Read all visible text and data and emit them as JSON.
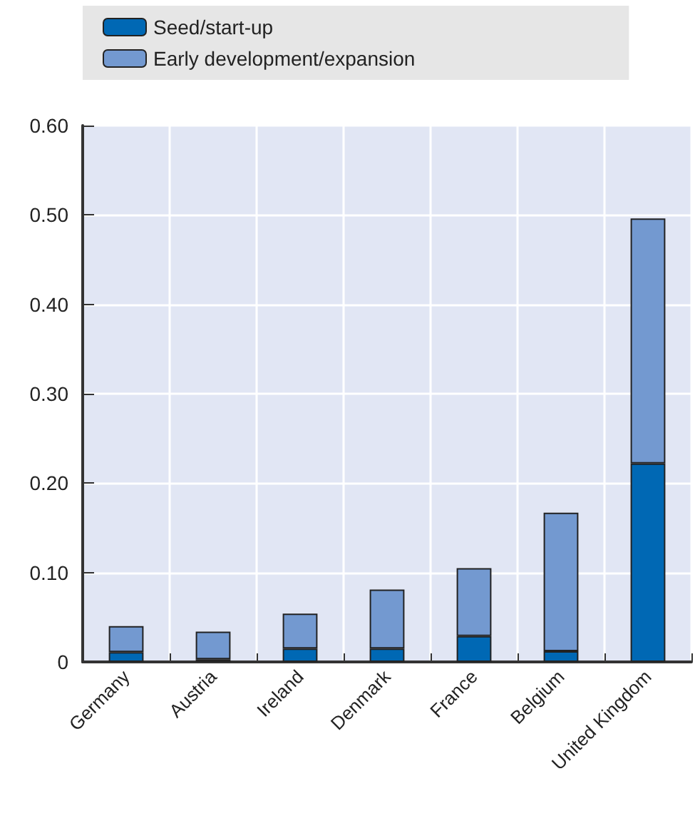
{
  "chart_data": {
    "type": "bar",
    "stacked": true,
    "categories": [
      "Germany",
      "Austria",
      "Ireland",
      "Denmark",
      "France",
      "Belgium",
      "United Kingdom"
    ],
    "series": [
      {
        "name": "Seed/start-up",
        "color": "#0068b4",
        "values": [
          0.011,
          0.003,
          0.015,
          0.015,
          0.029,
          0.012,
          0.222
        ]
      },
      {
        "name": "Early development/expansion",
        "color": "#7399d0",
        "values": [
          0.029,
          0.031,
          0.039,
          0.066,
          0.076,
          0.155,
          0.274
        ]
      }
    ],
    "ylim": [
      0,
      0.6
    ],
    "yticks": [
      {
        "value": 0,
        "label": "0"
      },
      {
        "value": 0.1,
        "label": "0.10"
      },
      {
        "value": 0.2,
        "label": "0.20"
      },
      {
        "value": 0.3,
        "label": "0.30"
      },
      {
        "value": 0.4,
        "label": "0.40"
      },
      {
        "value": 0.5,
        "label": "0.50"
      },
      {
        "value": 0.6,
        "label": "0.60"
      }
    ],
    "grid": true,
    "legend": "top left"
  }
}
